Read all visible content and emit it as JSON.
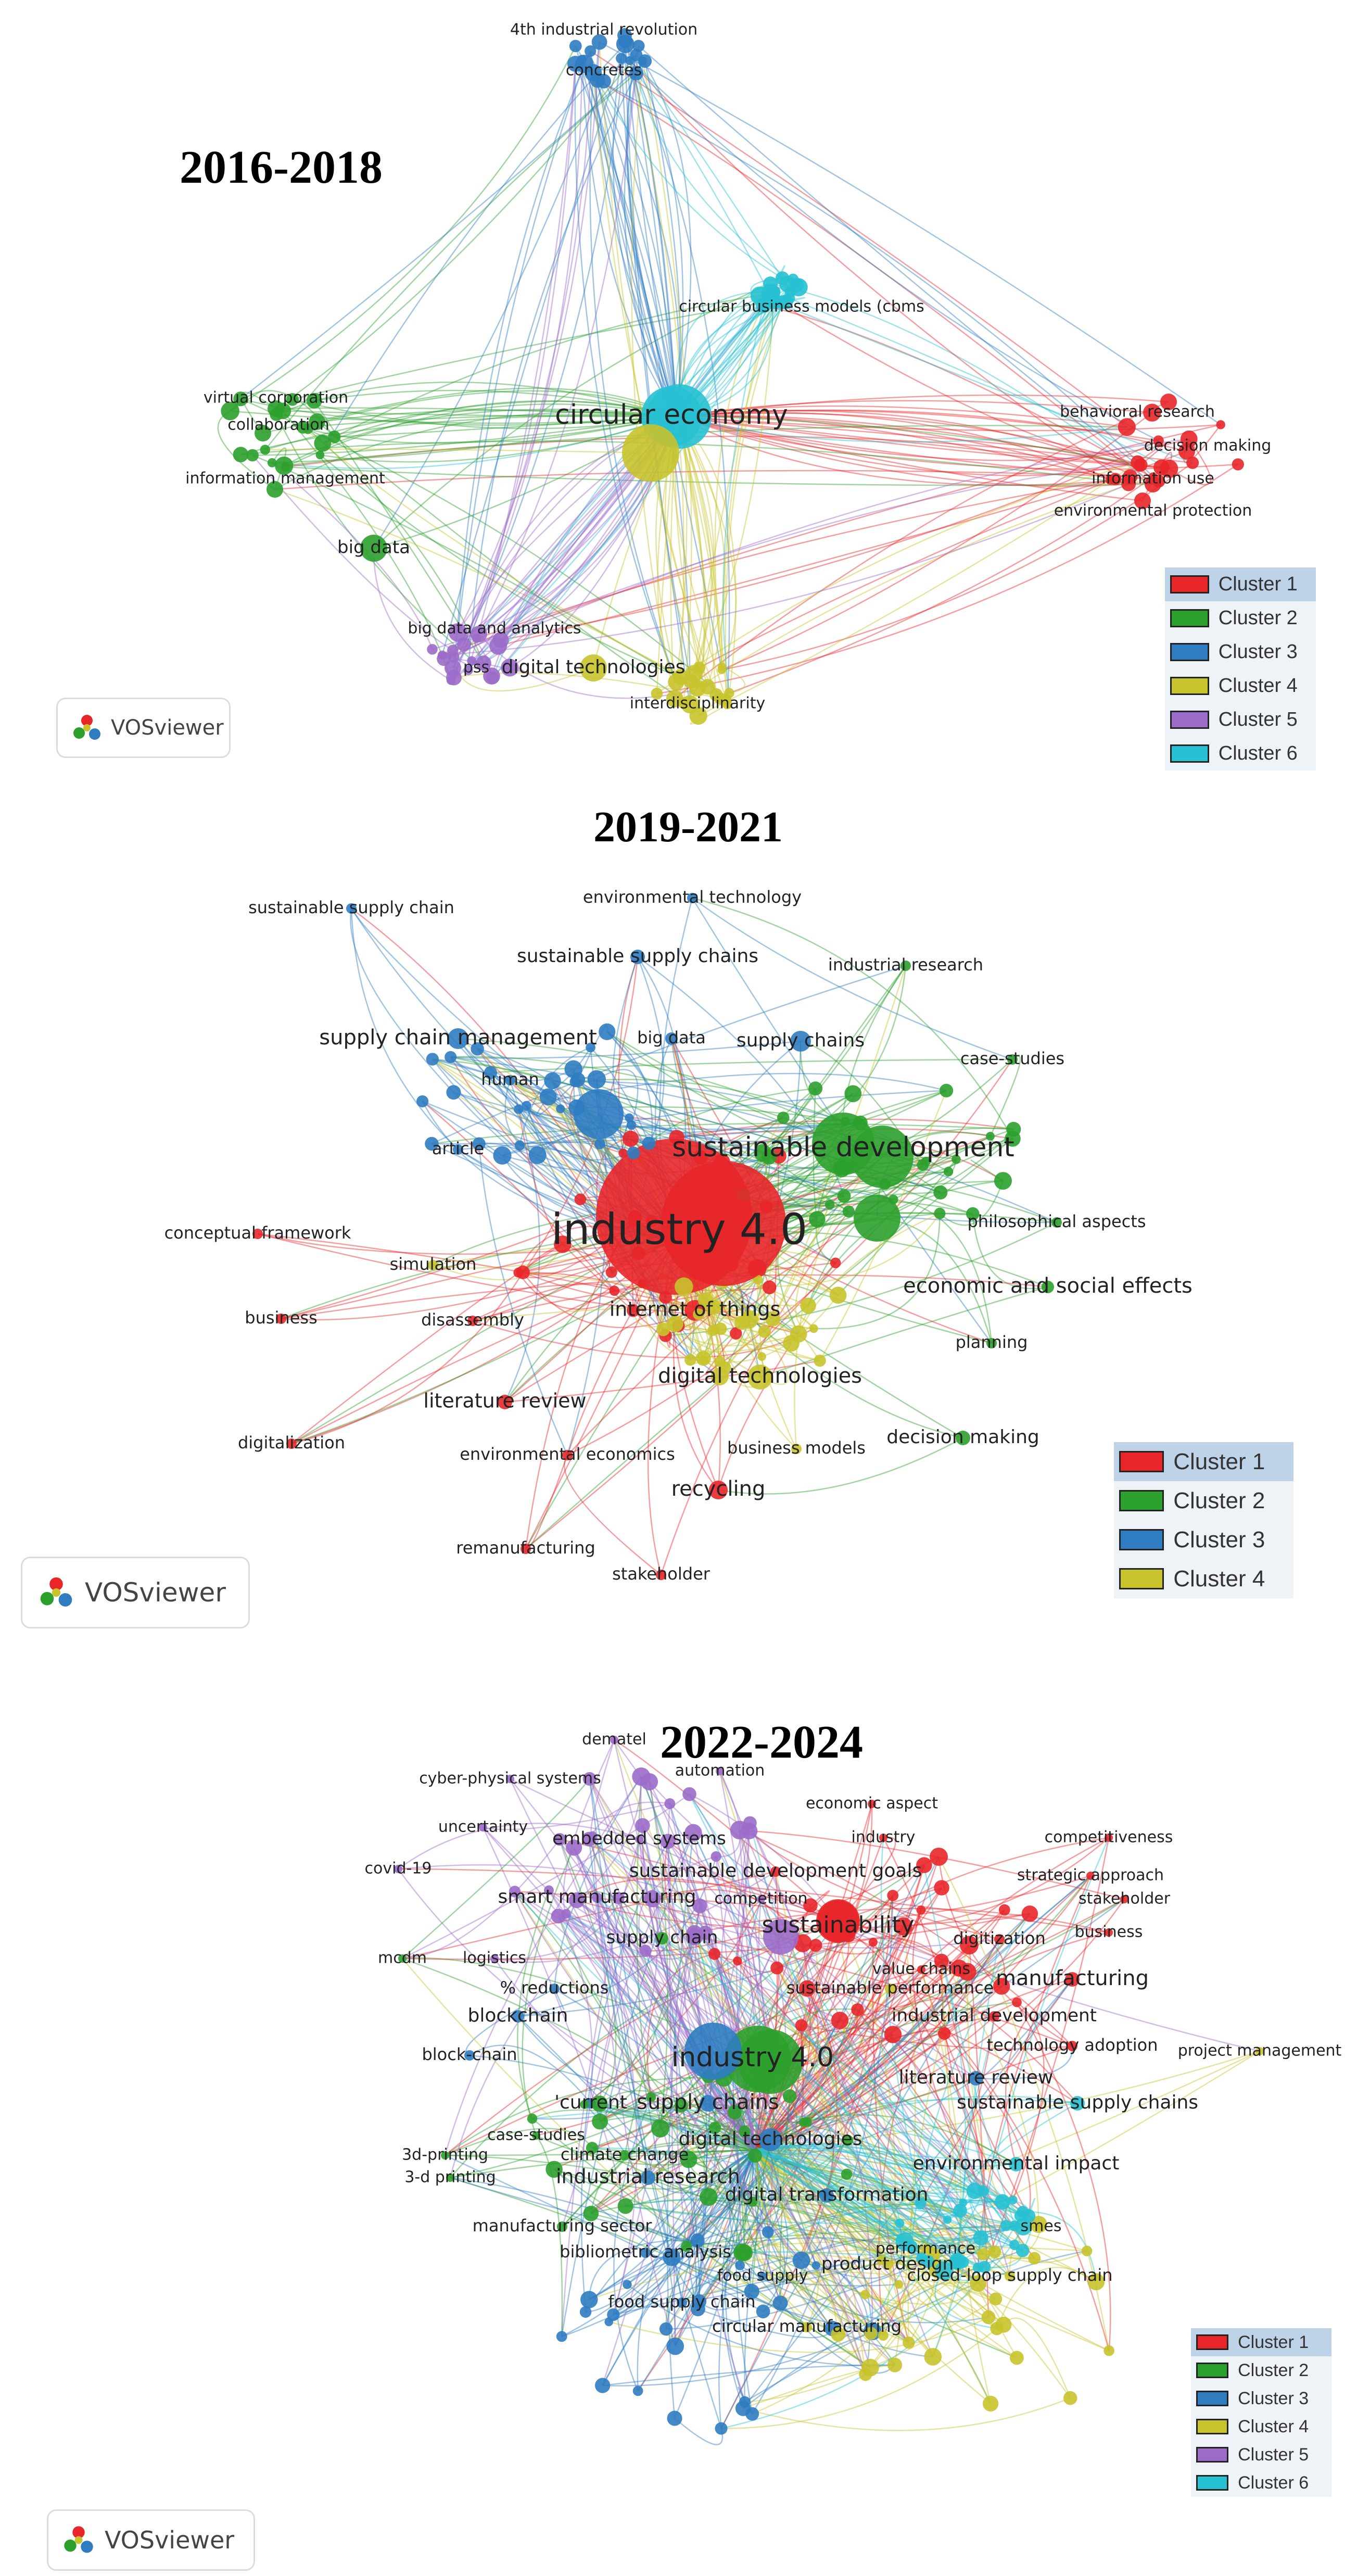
{
  "legend_colors": {
    "1": "#e8262a",
    "2": "#2ca02c",
    "3": "#2f7cc1",
    "4": "#c8c32c",
    "5": "#9b6bc9",
    "6": "#27c1d3"
  },
  "vosviewer_label": "VOSviewer",
  "panels": [
    {
      "title": "2016-2018",
      "legend": [
        {
          "label": "Cluster 1",
          "cluster": 1
        },
        {
          "label": "Cluster 2",
          "cluster": 2
        },
        {
          "label": "Cluster 3",
          "cluster": 3
        },
        {
          "label": "Cluster 4",
          "cluster": 4
        },
        {
          "label": "Cluster 5",
          "cluster": 5
        },
        {
          "label": "Cluster 6",
          "cluster": 6
        }
      ],
      "labels": [
        {
          "text": "4th industrial revolution",
          "cluster": 3
        },
        {
          "text": "concretes",
          "cluster": 3
        },
        {
          "text": "circular business models (cbms",
          "cluster": 6
        },
        {
          "text": "virtual corporation",
          "cluster": 2
        },
        {
          "text": "collaboration",
          "cluster": 2
        },
        {
          "text": "information management",
          "cluster": 2
        },
        {
          "text": "circular economy",
          "cluster": 6
        },
        {
          "text": "behavioral research",
          "cluster": 1
        },
        {
          "text": "decision making",
          "cluster": 1
        },
        {
          "text": "information use",
          "cluster": 1
        },
        {
          "text": "environmental protection",
          "cluster": 1
        },
        {
          "text": "big data",
          "cluster": 2
        },
        {
          "text": "big data and analytics",
          "cluster": 5
        },
        {
          "text": "pss",
          "cluster": 5
        },
        {
          "text": "digital technologies",
          "cluster": 4
        },
        {
          "text": "interdisciplinarity",
          "cluster": 4
        }
      ]
    },
    {
      "title": "2019-2021",
      "legend": [
        {
          "label": "Cluster 1",
          "cluster": 1
        },
        {
          "label": "Cluster 2",
          "cluster": 2
        },
        {
          "label": "Cluster 3",
          "cluster": 3
        },
        {
          "label": "Cluster 4",
          "cluster": 4
        }
      ],
      "labels": [
        {
          "text": "sustainable supply chain",
          "cluster": 3
        },
        {
          "text": "environmental technology",
          "cluster": 3
        },
        {
          "text": "sustainable supply chains",
          "cluster": 3
        },
        {
          "text": "industrial research",
          "cluster": 2
        },
        {
          "text": "supply chain management",
          "cluster": 3
        },
        {
          "text": "big data",
          "cluster": 3
        },
        {
          "text": "supply chains",
          "cluster": 3
        },
        {
          "text": "case-studies",
          "cluster": 2
        },
        {
          "text": "human",
          "cluster": 3
        },
        {
          "text": "sustainable development",
          "cluster": 2
        },
        {
          "text": "article",
          "cluster": 3
        },
        {
          "text": "industry 4.0",
          "cluster": 1
        },
        {
          "text": "philosophical aspects",
          "cluster": 2
        },
        {
          "text": "conceptual framework",
          "cluster": 1
        },
        {
          "text": "simulation",
          "cluster": 4
        },
        {
          "text": "economic and social effects",
          "cluster": 2
        },
        {
          "text": "business",
          "cluster": 1
        },
        {
          "text": "internet of things",
          "cluster": 1
        },
        {
          "text": "disassembly",
          "cluster": 1
        },
        {
          "text": "planning",
          "cluster": 2
        },
        {
          "text": "digital technologies",
          "cluster": 4
        },
        {
          "text": "literature review",
          "cluster": 1
        },
        {
          "text": "decision making",
          "cluster": 2
        },
        {
          "text": "digitalization",
          "cluster": 1
        },
        {
          "text": "environmental economics",
          "cluster": 1
        },
        {
          "text": "business models",
          "cluster": 4
        },
        {
          "text": "recycling",
          "cluster": 1
        },
        {
          "text": "remanufacturing",
          "cluster": 1
        },
        {
          "text": "stakeholder",
          "cluster": 1
        }
      ]
    },
    {
      "title": "2022-2024",
      "legend": [
        {
          "label": "Cluster 1",
          "cluster": 1
        },
        {
          "label": "Cluster 2",
          "cluster": 2
        },
        {
          "label": "Cluster 3",
          "cluster": 3
        },
        {
          "label": "Cluster 4",
          "cluster": 4
        },
        {
          "label": "Cluster 5",
          "cluster": 5
        },
        {
          "label": "Cluster 6",
          "cluster": 6
        }
      ],
      "labels": [
        {
          "text": "dematel",
          "cluster": 5
        },
        {
          "text": "automation",
          "cluster": 5
        },
        {
          "text": "cyber-physical systems",
          "cluster": 5
        },
        {
          "text": "economic aspect",
          "cluster": 1
        },
        {
          "text": "uncertainty",
          "cluster": 5
        },
        {
          "text": "embedded systems",
          "cluster": 5
        },
        {
          "text": "industry",
          "cluster": 1
        },
        {
          "text": "competitiveness",
          "cluster": 1
        },
        {
          "text": "covid-19",
          "cluster": 5
        },
        {
          "text": "sustainable development goals",
          "cluster": 1
        },
        {
          "text": "strategic approach",
          "cluster": 1
        },
        {
          "text": "smart manufacturing",
          "cluster": 5
        },
        {
          "text": "competition",
          "cluster": 5
        },
        {
          "text": "stakeholder",
          "cluster": 1
        },
        {
          "text": "sustainability",
          "cluster": 1
        },
        {
          "text": "business",
          "cluster": 1
        },
        {
          "text": "supply chain",
          "cluster": 2
        },
        {
          "text": "digitization",
          "cluster": 1
        },
        {
          "text": "mcdm",
          "cluster": 2
        },
        {
          "text": "logistics",
          "cluster": 5
        },
        {
          "text": "value chains",
          "cluster": 1
        },
        {
          "text": "manufacturing",
          "cluster": 1
        },
        {
          "text": "% reductions",
          "cluster": 3
        },
        {
          "text": "sustainable performance",
          "cluster": 4
        },
        {
          "text": "blockchain",
          "cluster": 3
        },
        {
          "text": "industrial development",
          "cluster": 1
        },
        {
          "text": "industry 4.0",
          "cluster": 2
        },
        {
          "text": "technology adoption",
          "cluster": 1
        },
        {
          "text": "block-chain",
          "cluster": 3
        },
        {
          "text": "project management",
          "cluster": 4
        },
        {
          "text": "literature review",
          "cluster": 3
        },
        {
          "text": "'current",
          "cluster": 3
        },
        {
          "text": "supply chains",
          "cluster": 3
        },
        {
          "text": "sustainable supply chains",
          "cluster": 6
        },
        {
          "text": "case-studies",
          "cluster": 2
        },
        {
          "text": "digital technologies",
          "cluster": 3
        },
        {
          "text": "3d-printing",
          "cluster": 2
        },
        {
          "text": "climate change",
          "cluster": 2
        },
        {
          "text": "environmental impact",
          "cluster": 6
        },
        {
          "text": "3-d printing",
          "cluster": 2
        },
        {
          "text": "industrial research",
          "cluster": 3
        },
        {
          "text": "digital transformation",
          "cluster": 3
        },
        {
          "text": "manufacturing sector",
          "cluster": 2
        },
        {
          "text": "smes",
          "cluster": 4
        },
        {
          "text": "performance",
          "cluster": 4
        },
        {
          "text": "bibliometric analysis",
          "cluster": 3
        },
        {
          "text": "product design",
          "cluster": 4
        },
        {
          "text": "food supply",
          "cluster": 3
        },
        {
          "text": "closed-loop supply chain",
          "cluster": 4
        },
        {
          "text": "food supply chain",
          "cluster": 3
        },
        {
          "text": "circular manufacturing",
          "cluster": 4
        }
      ]
    }
  ]
}
